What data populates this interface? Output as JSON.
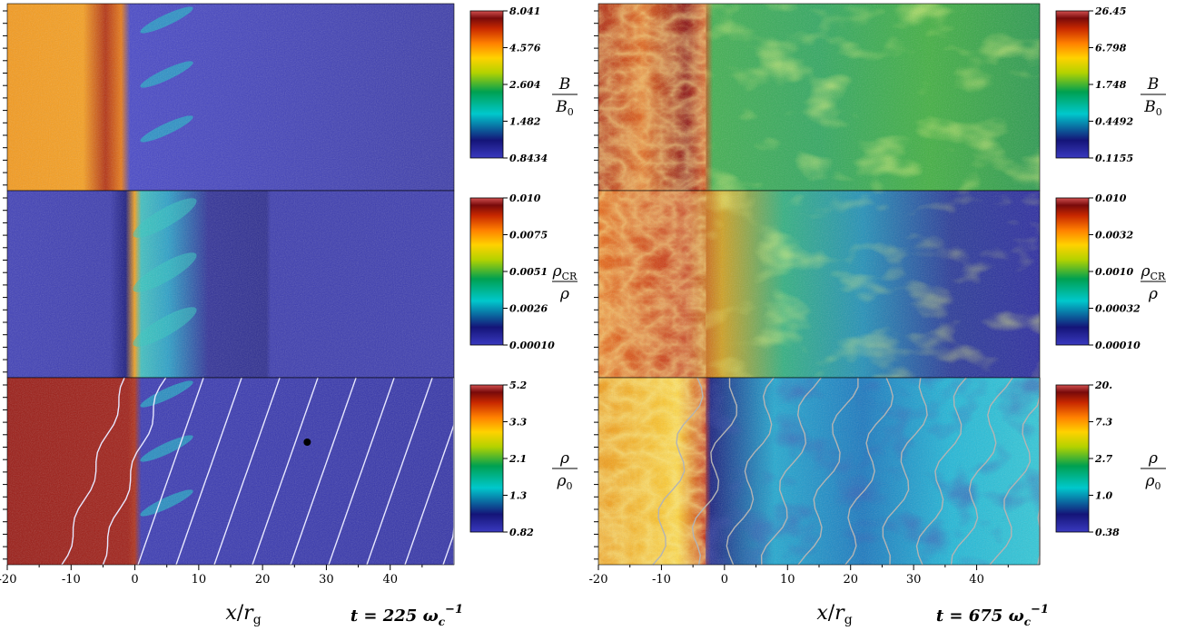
{
  "x_axis": {
    "ticks": [
      "-20",
      "-10",
      "0",
      "10",
      "20",
      "30",
      "40"
    ],
    "tick_values": [
      -20,
      -10,
      0,
      10,
      20,
      30,
      40
    ],
    "range": [
      -20,
      50
    ],
    "label_main": "x",
    "label_sep": "/",
    "label_var": "r",
    "label_sub": "g"
  },
  "snapshots": [
    {
      "time_prefix": "t = ",
      "time_value": "225",
      "time_unit": "ω",
      "time_sub": "c",
      "time_sup": "−1",
      "panels": [
        {
          "quantity": "B",
          "quantity_den": "B",
          "den_sub": "0",
          "colorbar_ticks": [
            "8.041",
            "4.576",
            "2.604",
            "1.482",
            "0.8434"
          ]
        },
        {
          "quantity": "ρ",
          "quantity_sub": "CR",
          "quantity_den": "ρ",
          "den_sub": "",
          "colorbar_ticks": [
            "0.010",
            "0.0075",
            "0.0051",
            "0.0026",
            "0.00010"
          ]
        },
        {
          "quantity": "ρ",
          "quantity_den": "ρ",
          "den_sub": "0",
          "colorbar_ticks": [
            "5.2",
            "3.3",
            "2.1",
            "1.3",
            "0.82"
          ]
        }
      ]
    },
    {
      "time_prefix": "t = ",
      "time_value": "675",
      "time_unit": "ω",
      "time_sub": "c",
      "time_sup": "−1",
      "panels": [
        {
          "quantity": "B",
          "quantity_den": "B",
          "den_sub": "0",
          "colorbar_ticks": [
            "26.45",
            "6.798",
            "1.748",
            "0.4492",
            "0.1155"
          ]
        },
        {
          "quantity": "ρ",
          "quantity_sub": "CR",
          "quantity_den": "ρ",
          "den_sub": "",
          "colorbar_ticks": [
            "0.010",
            "0.0032",
            "0.0010",
            "0.00032",
            "0.00010"
          ]
        },
        {
          "quantity": "ρ",
          "quantity_den": "ρ",
          "den_sub": "0",
          "colorbar_ticks": [
            "20.",
            "7.3",
            "2.7",
            "1.0",
            "0.38"
          ]
        }
      ]
    }
  ],
  "colormap": [
    "#3232b4",
    "#1a1a78",
    "#00c8d2",
    "#00a000",
    "#c8d200",
    "#ffd200",
    "#ff8c00",
    "#dc3200",
    "#8c0a0a",
    "#dc5050"
  ]
}
